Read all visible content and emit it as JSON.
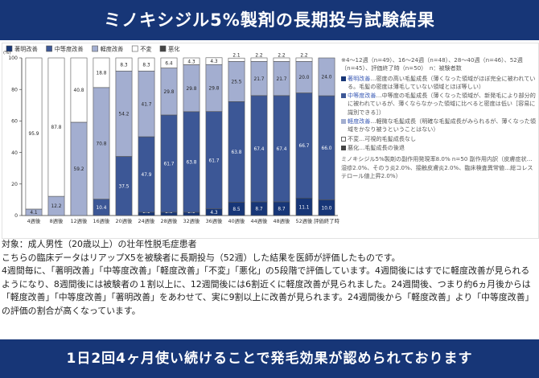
{
  "header": {
    "title": "ミノキシジル5%製剤の長期投与試験結果"
  },
  "footer": {
    "banner": "1日2回4ヶ月使い続けることで発毛効果が認められております"
  },
  "legend_notes": {
    "sample_sizes": "※4～12週（n=49）、16～24週（n=48）、28～40週（n=46）、52週（n=45）、評価終了時（n=50）　n：被験者数",
    "items": [
      {
        "name": "著明改善",
        "desc": "…密度の高い毛髪成長（薄くなった領域がほぼ完全に被われている。毛髪の密度は薄毛していない領域とほぼ等しい）",
        "color": "#173677"
      },
      {
        "name": "中等度改善",
        "desc": "…中等度の毛髪成長（薄くなった領域が、新発毛により部分的に被われているが、薄くならなかった領域に比べると密度は低い［容易に識別できる］）",
        "color": "#3c5796"
      },
      {
        "name": "軽度改善",
        "desc": "…軽微な毛髪成長（明確な毛髪成長がみられるが、薄くなった領域をかなり被うということはない）",
        "color": "#a3aed0"
      },
      {
        "name": "不変",
        "desc": "…可視的毛髪成長なし",
        "color": "#ffffff"
      },
      {
        "name": "悪化",
        "desc": "…毛髪成長の後退",
        "color": "#444444"
      }
    ],
    "side_effects": "ミノキシジル5%製剤の副作用発現率8.0% n=50 副作用内訳（皮膚症状…湿疹2.0%、そのう炎2.0%、接触皮膚炎2.0%、臨床検査異常値…総コレステロール値上昇2.0%）"
  },
  "description": {
    "subject": "対象：成人男性（20歳以上）の壮年性脱毛症患者",
    "line1": "こちらの臨床データはリアップX5を被験者に長期投与（52週）した結果を医師が評価したものです。",
    "paragraph": "4週間毎に、「著明改善」「中等度改善」「軽度改善」「不変」「悪化」の5段階で評価しています。4週間後にはすでに軽度改善が見られるようになり、8週間後には被験者の１割以上に、12週間後には6割近くに軽度改善が見られました。24週間後、つまり約6ヵ月後からは「軽度改善」「中等度改善」「著明改善」をあわせて、実に9割以上に改善が見られます。24週間後から「軽度改善」より「中等度改善」の評価の割合が高くなっています。"
  },
  "chart_data": {
    "type": "bar",
    "stacked": true,
    "ylabel": "(%)",
    "ylim": [
      0,
      100
    ],
    "yticks": [
      0,
      20,
      40,
      60,
      80,
      100
    ],
    "categories": [
      "4週後",
      "8週後",
      "12週後",
      "16週後",
      "20週後",
      "24週後",
      "28週後",
      "32週後",
      "36週後",
      "40週後",
      "44週後",
      "48週後",
      "52週後",
      "評価終了時"
    ],
    "series": [
      {
        "name": "著明改善",
        "color": "#173677",
        "values": [
          0,
          0,
          0,
          0,
          0,
          2.1,
          2.1,
          2.1,
          4.3,
          8.5,
          8.7,
          8.7,
          11.1,
          10.0
        ]
      },
      {
        "name": "中等度改善",
        "color": "#3c5796",
        "values": [
          0,
          0,
          0,
          10.4,
          37.5,
          47.9,
          61.7,
          63.8,
          61.7,
          63.8,
          67.4,
          67.4,
          66.7,
          66.0
        ]
      },
      {
        "name": "軽度改善",
        "color": "#a3aed0",
        "values": [
          4.1,
          12.2,
          59.2,
          70.8,
          54.2,
          41.7,
          29.8,
          29.8,
          29.8,
          25.5,
          21.7,
          21.7,
          20.0,
          24.0
        ]
      },
      {
        "name": "不変",
        "color": "#ffffff",
        "values": [
          95.9,
          87.8,
          40.8,
          18.8,
          8.3,
          8.3,
          6.4,
          4.3,
          4.3,
          2.1,
          2.2,
          2.2,
          2.2,
          0
        ]
      },
      {
        "name": "悪化",
        "color": "#444444",
        "values": [
          0,
          0,
          0,
          0,
          0,
          0,
          0,
          0,
          0,
          0,
          0,
          0,
          0,
          0
        ]
      }
    ],
    "labels": [
      [
        "",
        "",
        "4.1",
        "95.9",
        ""
      ],
      [
        "",
        "",
        "12.2",
        "87.8",
        ""
      ],
      [
        "",
        "",
        "59.2",
        "40.8",
        ""
      ],
      [
        "",
        "10.4",
        "70.8",
        "18.8",
        ""
      ],
      [
        "",
        "37.5",
        "54.2",
        "8.3",
        ""
      ],
      [
        "2.1",
        "47.9",
        "41.7",
        "8.3",
        ""
      ],
      [
        "2.1",
        "61.7",
        "29.8",
        "6.4",
        ""
      ],
      [
        "2.1",
        "63.8",
        "29.8",
        "4.3",
        ""
      ],
      [
        "4.3",
        "61.7",
        "29.8",
        "4.3",
        ""
      ],
      [
        "8.5",
        "63.8",
        "25.5",
        "2.1",
        ""
      ],
      [
        "8.7",
        "67.4",
        "21.7",
        "2.2",
        ""
      ],
      [
        "8.7",
        "67.4",
        "21.7",
        "2.2",
        ""
      ],
      [
        "11.1",
        "66.7",
        "20.0",
        "2.2",
        ""
      ],
      [
        "10.0",
        "66.0",
        "24.0",
        "",
        ""
      ]
    ],
    "legend_position": "top",
    "grid": false
  }
}
